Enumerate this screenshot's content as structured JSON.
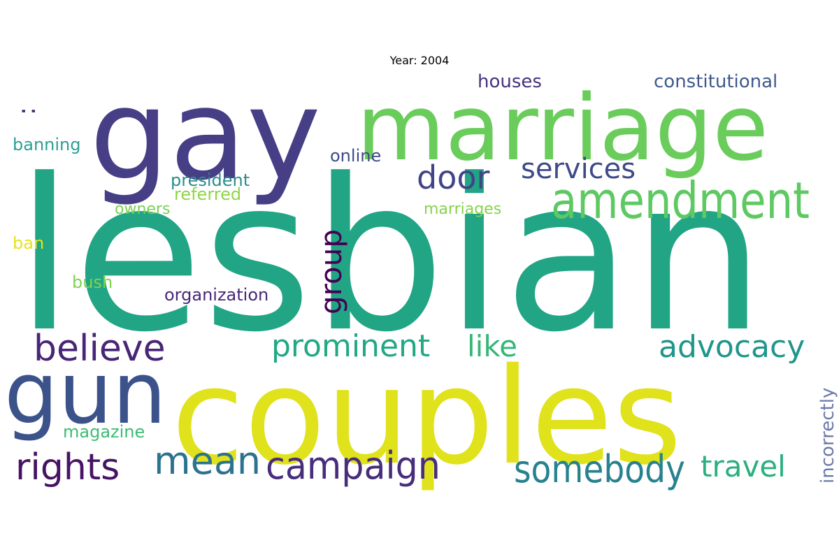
{
  "title": "Year: 2004",
  "words": [
    {
      "text": "lesbian",
      "color": "#21a585"
    },
    {
      "text": "couples",
      "color": "#e0e21b"
    },
    {
      "text": "gay",
      "color": "#463f86"
    },
    {
      "text": "marriage",
      "color": "#6acd5b"
    },
    {
      "text": "gun",
      "color": "#3b528b"
    },
    {
      "text": "amendment",
      "color": "#5ec962"
    },
    {
      "text": "believe",
      "color": "#482676"
    },
    {
      "text": "rights",
      "color": "#471365"
    },
    {
      "text": "campaign",
      "color": "#472d7b"
    },
    {
      "text": "mean",
      "color": "#2c728e"
    },
    {
      "text": "somebody",
      "color": "#26828e"
    },
    {
      "text": "prominent",
      "color": "#22a884"
    },
    {
      "text": "advocacy",
      "color": "#1f968b"
    },
    {
      "text": "door",
      "color": "#414487"
    },
    {
      "text": "services",
      "color": "#3e4a89"
    },
    {
      "text": "like",
      "color": "#35b779"
    },
    {
      "text": "travel",
      "color": "#2ab07f"
    },
    {
      "text": "group",
      "color": "#440154"
    },
    {
      "text": "incorrectly",
      "color": "#6b7aa8"
    },
    {
      "text": "constitutional",
      "color": "#3f5a8a"
    },
    {
      "text": "houses",
      "color": "#46337e"
    },
    {
      "text": "banning",
      "color": "#2d9f93"
    },
    {
      "text": "online",
      "color": "#3e4989"
    },
    {
      "text": "president",
      "color": "#2a8d8c"
    },
    {
      "text": "referred",
      "color": "#8fd744"
    },
    {
      "text": "owners",
      "color": "#7ad151"
    },
    {
      "text": "marriages",
      "color": "#84d44b"
    },
    {
      "text": "organization",
      "color": "#482878"
    },
    {
      "text": "ban",
      "color": "#e5e419"
    },
    {
      "text": "bush",
      "color": "#7fd34e"
    },
    {
      "text": "magazine",
      "color": "#3dbc74"
    },
    {
      "text": ":",
      "color": "#482475"
    }
  ]
}
